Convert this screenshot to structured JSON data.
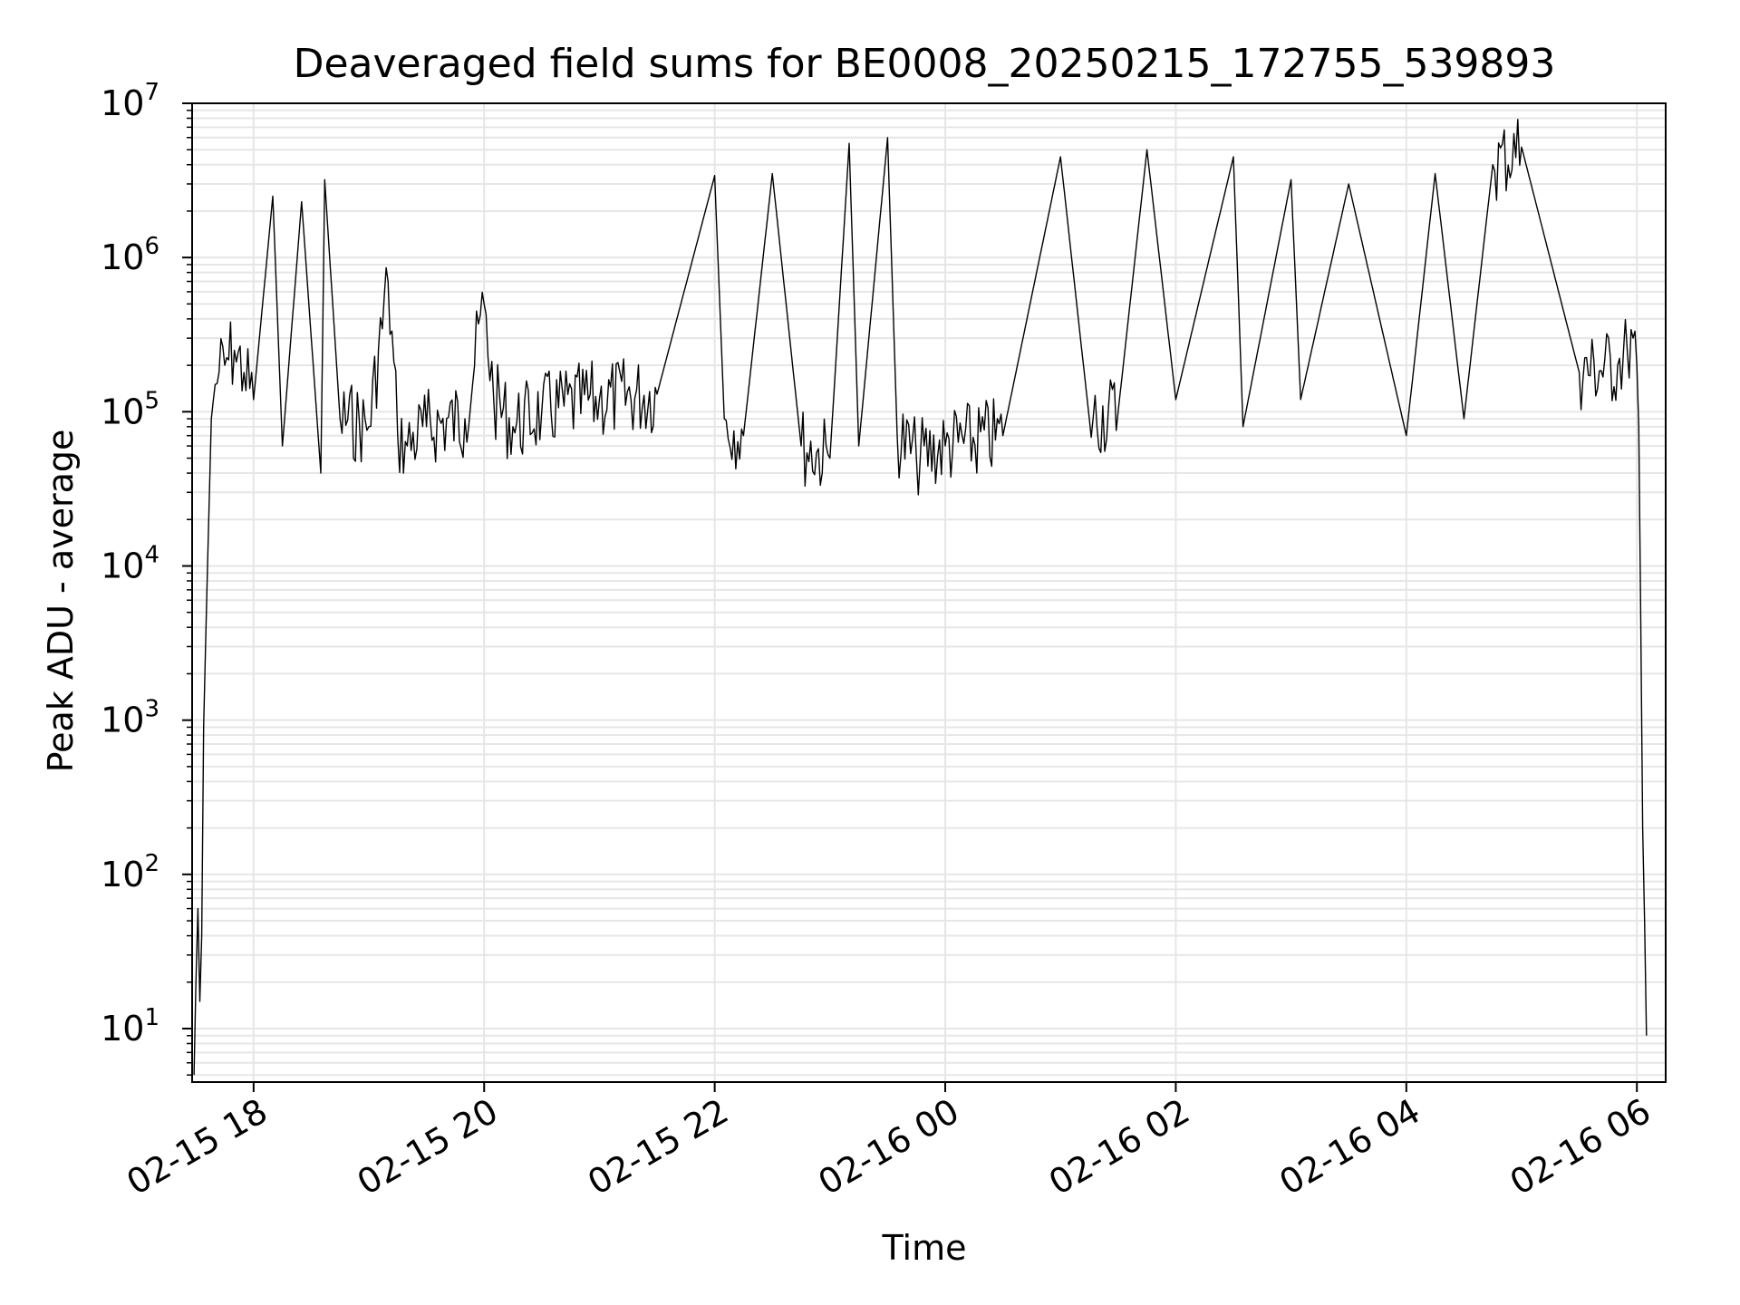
{
  "chart_data": {
    "type": "line",
    "title": "Deaveraged field sums for BE0008_20250215_172755_539893",
    "xlabel": "Time",
    "ylabel": "Peak ADU - average",
    "y_scale": "log",
    "ylim": [
      4.5,
      10000000
    ],
    "xlim": [
      "2025-02-15 17:28",
      "2025-02-16 06:15"
    ],
    "x_ticks": [
      {
        "value": "2025-02-15 18:00",
        "label": "02-15 18"
      },
      {
        "value": "2025-02-15 20:00",
        "label": "02-15 20"
      },
      {
        "value": "2025-02-15 22:00",
        "label": "02-15 22"
      },
      {
        "value": "2025-02-16 00:00",
        "label": "02-16 00"
      },
      {
        "value": "2025-02-16 02:00",
        "label": "02-16 02"
      },
      {
        "value": "2025-02-16 04:00",
        "label": "02-16 04"
      },
      {
        "value": "2025-02-16 06:00",
        "label": "02-16 06"
      }
    ],
    "y_ticks": [
      {
        "value": 10,
        "base": "10",
        "exp": "1"
      },
      {
        "value": 100,
        "base": "10",
        "exp": "2"
      },
      {
        "value": 1000,
        "base": "10",
        "exp": "3"
      },
      {
        "value": 10000,
        "base": "10",
        "exp": "4"
      },
      {
        "value": 100000,
        "base": "10",
        "exp": "5"
      },
      {
        "value": 1000000,
        "base": "10",
        "exp": "6"
      },
      {
        "value": 10000000,
        "base": "10",
        "exp": "7"
      }
    ],
    "grid": true,
    "line_color": "#000000",
    "grid_color": "#e6e6e6",
    "series": [
      {
        "x": [
          "2025-02-15 17:29",
          "2025-02-15 17:30",
          "2025-02-15 17:31",
          "2025-02-15 17:32",
          "2025-02-15 17:33",
          "2025-02-15 17:34",
          "2025-02-15 17:35",
          "2025-02-15 17:36",
          "2025-02-15 17:37",
          "2025-02-15 17:38",
          "2025-02-15 17:40",
          "2025-02-15 17:42",
          "2025-02-15 17:45",
          "2025-02-15 17:50",
          "2025-02-15 17:55",
          "2025-02-15 18:00",
          "2025-02-15 18:10",
          "2025-02-15 18:15",
          "2025-02-15 18:25",
          "2025-02-15 18:35",
          "2025-02-15 18:37",
          "2025-02-15 18:45",
          "2025-02-15 19:00",
          "2025-02-15 19:10",
          "2025-02-15 19:15",
          "2025-02-15 19:20",
          "2025-02-15 19:30",
          "2025-02-15 19:50",
          "2025-02-15 20:00",
          "2025-02-15 20:05",
          "2025-02-15 20:15",
          "2025-02-15 20:30",
          "2025-02-15 21:00",
          "2025-02-15 21:30",
          "2025-02-15 22:00",
          "2025-02-15 22:05",
          "2025-02-15 22:15",
          "2025-02-15 22:30",
          "2025-02-15 22:45",
          "2025-02-15 23:00",
          "2025-02-15 23:10",
          "2025-02-15 23:15",
          "2025-02-15 23:30",
          "2025-02-15 23:35",
          "2025-02-15 23:45",
          "2025-02-16 00:00",
          "2025-02-16 00:30",
          "2025-02-16 01:00",
          "2025-02-16 01:15",
          "2025-02-16 01:30",
          "2025-02-16 01:45",
          "2025-02-16 02:00",
          "2025-02-16 02:30",
          "2025-02-16 02:35",
          "2025-02-16 03:00",
          "2025-02-16 03:05",
          "2025-02-16 03:30",
          "2025-02-16 04:00",
          "2025-02-16 04:15",
          "2025-02-16 04:30",
          "2025-02-16 04:45",
          "2025-02-16 05:00",
          "2025-02-16 05:30",
          "2025-02-16 05:50",
          "2025-02-16 05:55",
          "2025-02-16 05:58",
          "2025-02-16 06:00",
          "2025-02-16 06:01",
          "2025-02-16 06:02",
          "2025-02-16 06:03",
          "2025-02-16 06:04",
          "2025-02-16 06:05"
        ],
        "y": [
          5,
          20,
          60,
          15,
          40,
          900,
          3000,
          10000,
          30000,
          90000,
          150000,
          180000,
          200000,
          250000,
          180000,
          120000,
          2500000,
          60000,
          2300000,
          40000,
          3200000,
          90000,
          80000,
          700000,
          70000,
          60000,
          80000,
          90000,
          500000,
          120000,
          80000,
          100000,
          120000,
          130000,
          3400000,
          90000,
          70000,
          3500000,
          60000,
          50000,
          5500000,
          60000,
          6000000,
          70000,
          50000,
          60000,
          70000,
          4500000,
          90000,
          100000,
          5000000,
          120000,
          4500000,
          80000,
          3200000,
          120000,
          3000000,
          70000,
          3500000,
          90000,
          4000000,
          5200000,
          180000,
          200000,
          250000,
          300000,
          200000,
          80000,
          5000,
          200,
          50,
          9
        ]
      }
    ]
  }
}
